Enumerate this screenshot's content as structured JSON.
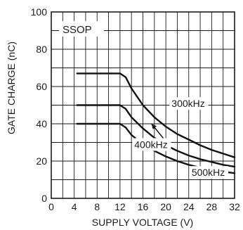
{
  "chart_data": {
    "type": "line",
    "title": "",
    "xlabel": "SUPPLY VOLTAGE (V)",
    "ylabel": "GATE CHARGE (nC)",
    "xlim": [
      0,
      32
    ],
    "ylim": [
      0,
      100
    ],
    "x_ticks": [
      0,
      4,
      8,
      12,
      16,
      20,
      24,
      28,
      32
    ],
    "y_ticks": [
      0,
      20,
      40,
      60,
      80,
      100
    ],
    "x_tick_labels": [
      "0",
      "4",
      "8",
      "12",
      "16",
      "20",
      "24",
      "28",
      "32"
    ],
    "y_tick_labels": [
      "0",
      "20",
      "40",
      "60",
      "80",
      "100"
    ],
    "grid_minor_step": {
      "x": 2,
      "y": 10
    },
    "grid": true,
    "package_label": "SSOP",
    "series": [
      {
        "name": "300kHz",
        "points": [
          [
            4.5,
            67
          ],
          [
            12,
            67
          ],
          [
            13,
            65
          ],
          [
            14,
            59
          ],
          [
            16,
            50
          ],
          [
            18,
            43.5
          ],
          [
            20,
            38.5
          ],
          [
            22,
            34.5
          ],
          [
            24,
            31.5
          ],
          [
            26,
            28.5
          ],
          [
            28,
            26
          ],
          [
            30,
            24
          ],
          [
            32,
            22
          ]
        ]
      },
      {
        "name": "400kHz",
        "points": [
          [
            4.5,
            50
          ],
          [
            12,
            50
          ],
          [
            13,
            48
          ],
          [
            14,
            43.5
          ],
          [
            16,
            37.5
          ],
          [
            18,
            32.5
          ],
          [
            20,
            28.5
          ],
          [
            22,
            25.5
          ],
          [
            24,
            23
          ],
          [
            26,
            21
          ],
          [
            28,
            19.5
          ],
          [
            30,
            18
          ],
          [
            32,
            17
          ]
        ]
      },
      {
        "name": "500kHz",
        "points": [
          [
            4.5,
            40
          ],
          [
            12,
            40
          ],
          [
            13,
            38
          ],
          [
            14,
            34
          ],
          [
            16,
            29
          ],
          [
            18,
            25.5
          ],
          [
            20,
            22.5
          ],
          [
            22,
            20
          ],
          [
            24,
            18
          ],
          [
            26,
            16.5
          ],
          [
            28,
            15.3
          ],
          [
            30,
            14.3
          ],
          [
            32,
            13.5
          ]
        ]
      }
    ],
    "annotations": [
      {
        "text": "300kHz",
        "x": 21,
        "y": 49,
        "series": "300kHz"
      },
      {
        "text": "400kHz",
        "x": 14.5,
        "y": 27,
        "series": "400kHz",
        "arrow_to": [
          17.5,
          40
        ]
      },
      {
        "text": "500kHz",
        "x": 24.5,
        "y": 12,
        "series": "500kHz"
      }
    ]
  }
}
